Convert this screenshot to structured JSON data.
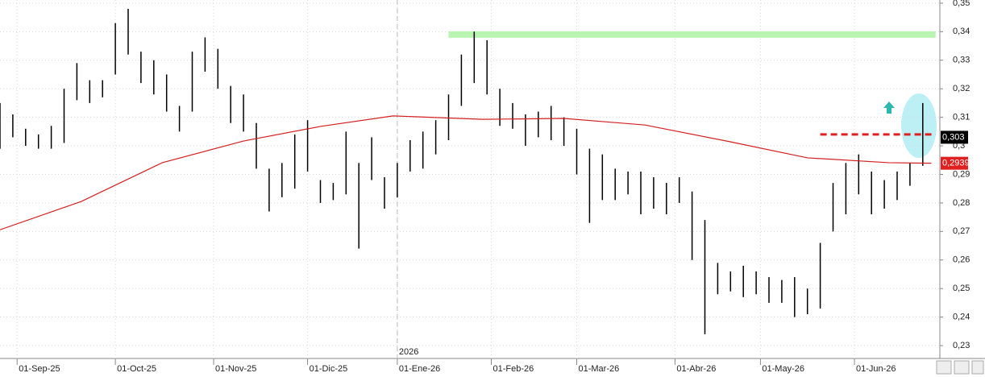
{
  "chart_data": {
    "type": "ohlc",
    "color": "#000000",
    "x": [
      0,
      3,
      6,
      9,
      12,
      15,
      18,
      21,
      24,
      27,
      30,
      33,
      36,
      39,
      42,
      45,
      48,
      51,
      54,
      57,
      60,
      63,
      66,
      69,
      72,
      75,
      78,
      81,
      84,
      87,
      90,
      93,
      96,
      99,
      102,
      105,
      108,
      111,
      114,
      117,
      120,
      123,
      126,
      129,
      132,
      135,
      138,
      141,
      144,
      147,
      150,
      153,
      156,
      159,
      162,
      165,
      168,
      171,
      174,
      177,
      180,
      183,
      186,
      189,
      192,
      195,
      198,
      201,
      204,
      207,
      210,
      213,
      216
    ],
    "high": [
      0.315,
      0.311,
      0.306,
      0.304,
      0.307,
      0.32,
      0.329,
      0.323,
      0.323,
      0.343,
      0.348,
      0.333,
      0.33,
      0.325,
      0.314,
      0.333,
      0.338,
      0.334,
      0.321,
      0.318,
      0.308,
      0.292,
      0.294,
      0.304,
      0.309,
      0.288,
      0.287,
      0.305,
      0.294,
      0.303,
      0.289,
      0.294,
      0.302,
      0.305,
      0.309,
      0.318,
      0.332,
      0.34,
      0.337,
      0.32,
      0.315,
      0.311,
      0.312,
      0.314,
      0.31,
      0.306,
      0.299,
      0.297,
      0.292,
      0.291,
      0.291,
      0.289,
      0.287,
      0.289,
      0.284,
      0.274,
      0.259,
      0.256,
      0.258,
      0.256,
      0.254,
      0.253,
      0.254,
      0.25,
      0.266,
      0.287,
      0.294,
      0.297,
      0.291,
      0.288,
      0.291,
      0.294,
      0.315
    ],
    "low": [
      0.299,
      0.303,
      0.3,
      0.299,
      0.299,
      0.301,
      0.316,
      0.315,
      0.317,
      0.325,
      0.332,
      0.322,
      0.318,
      0.312,
      0.305,
      0.312,
      0.326,
      0.32,
      0.308,
      0.305,
      0.292,
      0.277,
      0.282,
      0.285,
      0.291,
      0.28,
      0.281,
      0.283,
      0.264,
      0.288,
      0.278,
      0.282,
      0.291,
      0.292,
      0.297,
      0.302,
      0.314,
      0.322,
      0.318,
      0.307,
      0.306,
      0.3,
      0.303,
      0.302,
      0.3,
      0.29,
      0.273,
      0.281,
      0.281,
      0.283,
      0.276,
      0.278,
      0.276,
      0.28,
      0.26,
      0.234,
      0.248,
      0.249,
      0.247,
      0.248,
      0.245,
      0.245,
      0.24,
      0.241,
      0.243,
      0.27,
      0.276,
      0.283,
      0.276,
      0.278,
      0.281,
      0.286,
      0.293
    ],
    "ma": {
      "color": "#d42020",
      "x": [
        0,
        19,
        38,
        57,
        75,
        92,
        113,
        132,
        151,
        170,
        189,
        208,
        218
      ],
      "values": [
        0.2706,
        0.2805,
        0.2941,
        0.3017,
        0.3068,
        0.3105,
        0.3093,
        0.3096,
        0.3073,
        0.3017,
        0.2958,
        0.2941,
        0.2939
      ]
    },
    "resistance": {
      "value": 0.339,
      "x_range": [
        105,
        219
      ],
      "color": "#b8f5b0"
    },
    "breakout": {
      "value": 0.304,
      "x_range": [
        192,
        219
      ],
      "color": "#e02020"
    },
    "price_labels": [
      {
        "value": 0.303,
        "label": "0,303",
        "color": "#000000"
      },
      {
        "value": 0.2939,
        "label": "0,2939",
        "color": "#e02020"
      }
    ],
    "year_marker": {
      "value": 93,
      "label": "2026"
    },
    "xlim": [
      0,
      220
    ],
    "ylim": [
      0.2255,
      0.3511
    ],
    "xticks": [
      {
        "value": 4,
        "label": "01-Sep-25"
      },
      {
        "value": 27,
        "label": "01-Oct-25"
      },
      {
        "value": 50,
        "label": "01-Nov-25"
      },
      {
        "value": 72,
        "label": "01-Dic-25"
      },
      {
        "value": 93,
        "label": "01-Ene-26"
      },
      {
        "value": 115,
        "label": "01-Feb-26"
      },
      {
        "value": 135,
        "label": "01-Mar-26"
      },
      {
        "value": 158,
        "label": "01-Abr-26"
      },
      {
        "value": 178,
        "label": "01-May-26"
      },
      {
        "value": 200,
        "label": "01-Jun-26"
      }
    ],
    "yticks": [
      {
        "value": 0.23,
        "label": "0,23"
      },
      {
        "value": 0.24,
        "label": "0,24"
      },
      {
        "value": 0.25,
        "label": "0,25"
      },
      {
        "value": 0.26,
        "label": "0,26"
      },
      {
        "value": 0.27,
        "label": "0,27"
      },
      {
        "value": 0.28,
        "label": "0,28"
      },
      {
        "value": 0.29,
        "label": "0,29"
      },
      {
        "value": 0.3,
        "label": "0,3"
      },
      {
        "value": 0.31,
        "label": "0,31"
      },
      {
        "value": 0.32,
        "label": "0,32"
      },
      {
        "value": 0.33,
        "label": "0,33"
      },
      {
        "value": 0.34,
        "label": "0,34"
      },
      {
        "value": 0.35,
        "label": "0,35"
      }
    ],
    "grid": true
  }
}
